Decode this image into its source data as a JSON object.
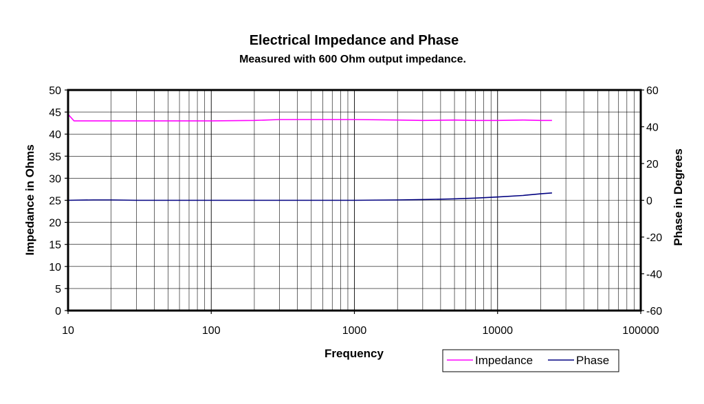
{
  "chart_data": {
    "type": "line",
    "title": "Electrical Impedance and Phase",
    "subtitle": "Measured with 600 Ohm output impedance.",
    "xlabel": "Frequency",
    "ylabel": "Impedance in Ohms",
    "y2label": "Phase in Degrees",
    "x_scale": "log",
    "xlim": [
      10,
      100000
    ],
    "ylim": [
      0,
      50
    ],
    "y2lim": [
      -60,
      60
    ],
    "grid": true,
    "legend_position": "bottom-right",
    "x_ticks": [
      "10",
      "100",
      "1000",
      "10000",
      "100000"
    ],
    "y_ticks": [
      "0",
      "5",
      "10",
      "15",
      "20",
      "25",
      "30",
      "35",
      "40",
      "45",
      "50"
    ],
    "y2_ticks": [
      "-60",
      "-40",
      "-20",
      "0",
      "20",
      "40",
      "60"
    ],
    "series": [
      {
        "name": "Impedance",
        "axis": "left",
        "color": "#ff00ff",
        "x": [
          10,
          11,
          15,
          20,
          30,
          50,
          100,
          200,
          300,
          500,
          1000,
          2000,
          3000,
          5000,
          7000,
          10000,
          15000,
          20000,
          24000
        ],
        "y": [
          44.5,
          43.0,
          43.0,
          43.0,
          43.0,
          43.0,
          43.0,
          43.1,
          43.3,
          43.3,
          43.3,
          43.2,
          43.1,
          43.2,
          43.1,
          43.1,
          43.2,
          43.1,
          43.1
        ]
      },
      {
        "name": "Phase",
        "axis": "right",
        "color": "#000080",
        "x": [
          10,
          15,
          20,
          30,
          50,
          100,
          200,
          500,
          1000,
          2000,
          3000,
          4000,
          5000,
          7000,
          10000,
          15000,
          20000,
          24000
        ],
        "y": [
          0,
          0.2,
          0.2,
          0,
          0,
          0,
          0,
          0,
          0,
          0.2,
          0.4,
          0.6,
          0.8,
          1.2,
          1.8,
          2.6,
          3.5,
          4.0
        ]
      }
    ]
  }
}
